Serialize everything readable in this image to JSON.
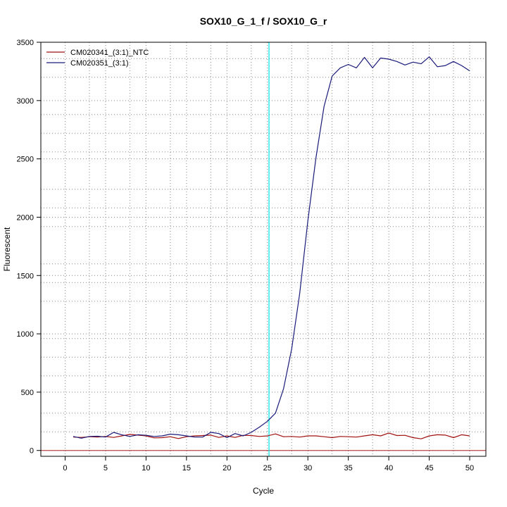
{
  "chart_data": {
    "type": "line",
    "title": "SOX10_G_1_f / SOX10_G_r",
    "xlabel": "Cycle",
    "ylabel": "Fluorescent",
    "xlim": [
      -3,
      52
    ],
    "ylim": [
      -50,
      3500
    ],
    "xticks": [
      0,
      5,
      10,
      15,
      20,
      25,
      30,
      35,
      40,
      45,
      50
    ],
    "yticks": [
      0,
      500,
      1000,
      1500,
      2000,
      2500,
      3000,
      3500
    ],
    "x_minor_gridlines": [
      3,
      8,
      13,
      18,
      23,
      28,
      33,
      38,
      43,
      48
    ],
    "y_minor_gridlines": [
      160,
      320,
      640,
      800,
      960,
      1280,
      1440,
      1600,
      1920,
      2080,
      2240,
      2560,
      2720,
      2880,
      3200,
      3360
    ],
    "grid": true,
    "legend_position": "top-left",
    "threshold_x": 25.2,
    "threshold_color": "#00e5e5",
    "baseline_y": 0,
    "baseline_color": "#b22222",
    "series": [
      {
        "name": "CM020341_(3:1)_NTC",
        "color": "#a01010",
        "x": [
          1,
          2,
          3,
          4,
          5,
          6,
          7,
          8,
          9,
          10,
          11,
          12,
          13,
          14,
          15,
          16,
          17,
          18,
          19,
          20,
          21,
          22,
          23,
          24,
          25,
          26,
          27,
          28,
          29,
          30,
          31,
          32,
          33,
          34,
          35,
          36,
          37,
          38,
          39,
          40,
          41,
          42,
          43,
          44,
          45,
          46,
          47,
          48,
          49,
          50
        ],
        "values": [
          115,
          112,
          118,
          115,
          120,
          112,
          125,
          138,
          132,
          125,
          108,
          110,
          118,
          102,
          118,
          125,
          128,
          132,
          112,
          125,
          112,
          130,
          128,
          120,
          125,
          142,
          118,
          120,
          115,
          125,
          125,
          118,
          110,
          120,
          118,
          115,
          125,
          135,
          125,
          150,
          128,
          130,
          110,
          100,
          125,
          135,
          132,
          110,
          135,
          125
        ]
      },
      {
        "name": "CM020351_(3:1)",
        "color": "#1a1a7a",
        "x": [
          1,
          2,
          3,
          4,
          5,
          6,
          7,
          8,
          9,
          10,
          11,
          12,
          13,
          14,
          15,
          16,
          17,
          18,
          19,
          20,
          21,
          22,
          23,
          24,
          25,
          26,
          27,
          28,
          29,
          30,
          31,
          32,
          33,
          34,
          35,
          36,
          37,
          38,
          39,
          40,
          41,
          42,
          43,
          44,
          45,
          46,
          47,
          48,
          49,
          50
        ],
        "values": [
          120,
          105,
          120,
          122,
          115,
          155,
          135,
          120,
          135,
          130,
          120,
          125,
          140,
          135,
          125,
          115,
          115,
          155,
          145,
          110,
          145,
          125,
          155,
          200,
          250,
          320,
          530,
          870,
          1350,
          1970,
          2510,
          2950,
          3210,
          3280,
          3310,
          3280,
          3370,
          3280,
          3365,
          3355,
          3335,
          3305,
          3330,
          3315,
          3375,
          3290,
          3300,
          3335,
          3300,
          3255
        ]
      }
    ]
  }
}
